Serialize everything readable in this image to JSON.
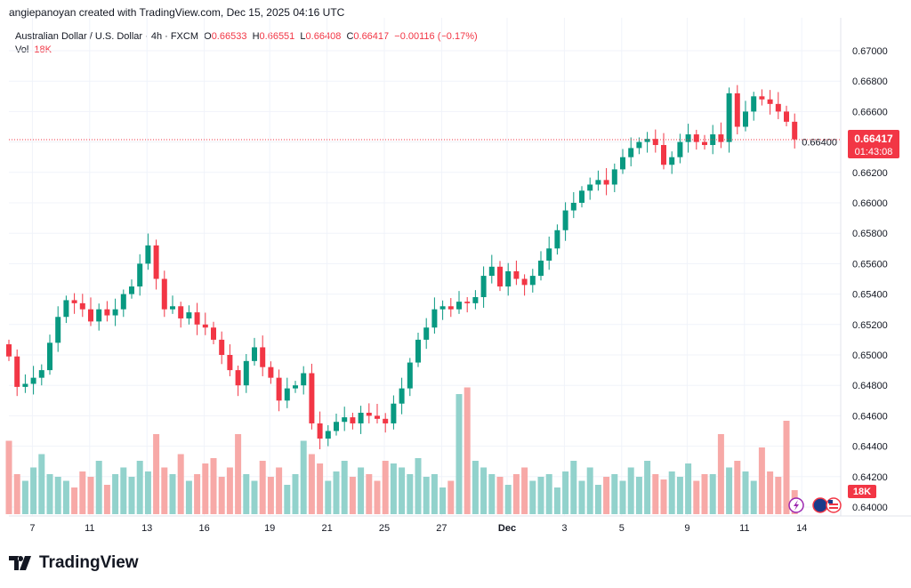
{
  "credit": "angiepanoyan created with TradingView.com, Dec 15, 2025 04:16 UTC",
  "legend": {
    "symbol": "Australian Dollar / U.S. Dollar · 4h · FXCM",
    "o_label": "O",
    "o": "0.66533",
    "h_label": "H",
    "h": "0.66551",
    "l_label": "L",
    "l": "0.66408",
    "c_label": "C",
    "c": "0.66417",
    "change": "−0.00116 (−0.17%)",
    "vol_label": "Vol",
    "vol": "18K"
  },
  "price_tag": {
    "price": "0.66417",
    "countdown": "01:43:08"
  },
  "vol_tag": "18K",
  "logo": "TradingView",
  "colors": {
    "up": "#089981",
    "down": "#f23645",
    "vol_up": "#92d2cc",
    "vol_down": "#f7a9a7"
  },
  "chart_data": {
    "type": "candlestick",
    "title": "Australian Dollar / U.S. Dollar · 4h · FXCM",
    "ylim": [
      0.6395,
      0.6712
    ],
    "y_ticks": [
      "0.67000",
      "0.66800",
      "0.66600",
      "0.66400",
      "0.66200",
      "0.66000",
      "0.65800",
      "0.65600",
      "0.65400",
      "0.65200",
      "0.65000",
      "0.64800",
      "0.64600",
      "0.64400",
      "0.64200",
      "0.64000"
    ],
    "x_ticks": [
      {
        "label": "7",
        "i": 2
      },
      {
        "label": "11",
        "i": 9
      },
      {
        "label": "13",
        "i": 16
      },
      {
        "label": "16",
        "i": 23
      },
      {
        "label": "19",
        "i": 31
      },
      {
        "label": "21",
        "i": 38
      },
      {
        "label": "25",
        "i": 45
      },
      {
        "label": "27",
        "i": 52
      },
      {
        "label": "Dec",
        "i": 60
      },
      {
        "label": "3",
        "i": 67
      },
      {
        "label": "5",
        "i": 74
      },
      {
        "label": "9",
        "i": 82
      },
      {
        "label": "11",
        "i": 89
      },
      {
        "label": "14",
        "i": 96
      }
    ],
    "closes": [
      0.6499,
      0.6479,
      0.6481,
      0.6485,
      0.649,
      0.6508,
      0.6525,
      0.6536,
      0.6534,
      0.653,
      0.6522,
      0.653,
      0.6526,
      0.653,
      0.654,
      0.6545,
      0.656,
      0.6572,
      0.655,
      0.653,
      0.6532,
      0.6524,
      0.6528,
      0.652,
      0.6518,
      0.651,
      0.65,
      0.649,
      0.648,
      0.6496,
      0.6505,
      0.6492,
      0.6485,
      0.647,
      0.6478,
      0.648,
      0.6488,
      0.6455,
      0.6445,
      0.645,
      0.6456,
      0.6459,
      0.6455,
      0.6462,
      0.646,
      0.6458,
      0.6455,
      0.6468,
      0.6478,
      0.6495,
      0.651,
      0.6518,
      0.653,
      0.6532,
      0.653,
      0.6535,
      0.6534,
      0.6538,
      0.6552,
      0.6558,
      0.6545,
      0.6555,
      0.655,
      0.6546,
      0.6552,
      0.6562,
      0.657,
      0.6582,
      0.6595,
      0.66,
      0.6608,
      0.6612,
      0.6615,
      0.6612,
      0.6622,
      0.663,
      0.6636,
      0.664,
      0.6642,
      0.6638,
      0.6625,
      0.663,
      0.664,
      0.6645,
      0.664,
      0.6638,
      0.6645,
      0.664,
      0.6672,
      0.665,
      0.666,
      0.667,
      0.6668,
      0.6665,
      0.666,
      0.66533,
      0.66417
    ],
    "volume_k": [
      55,
      30,
      25,
      35,
      45,
      30,
      28,
      25,
      20,
      32,
      28,
      40,
      22,
      30,
      35,
      28,
      40,
      32,
      60,
      35,
      30,
      45,
      25,
      30,
      38,
      42,
      28,
      35,
      60,
      30,
      25,
      40,
      28,
      35,
      22,
      30,
      55,
      45,
      38,
      25,
      32,
      40,
      28,
      35,
      30,
      25,
      40,
      38,
      35,
      30,
      42,
      28,
      30,
      20,
      25,
      90,
      95,
      40,
      35,
      30,
      28,
      22,
      30,
      35,
      25,
      28,
      30,
      20,
      32,
      40,
      25,
      35,
      22,
      28,
      30,
      25,
      35,
      28,
      40,
      30,
      26,
      32,
      28,
      38,
      25,
      30,
      30,
      60,
      35,
      40,
      32,
      25,
      50,
      32,
      28,
      70,
      18
    ]
  }
}
